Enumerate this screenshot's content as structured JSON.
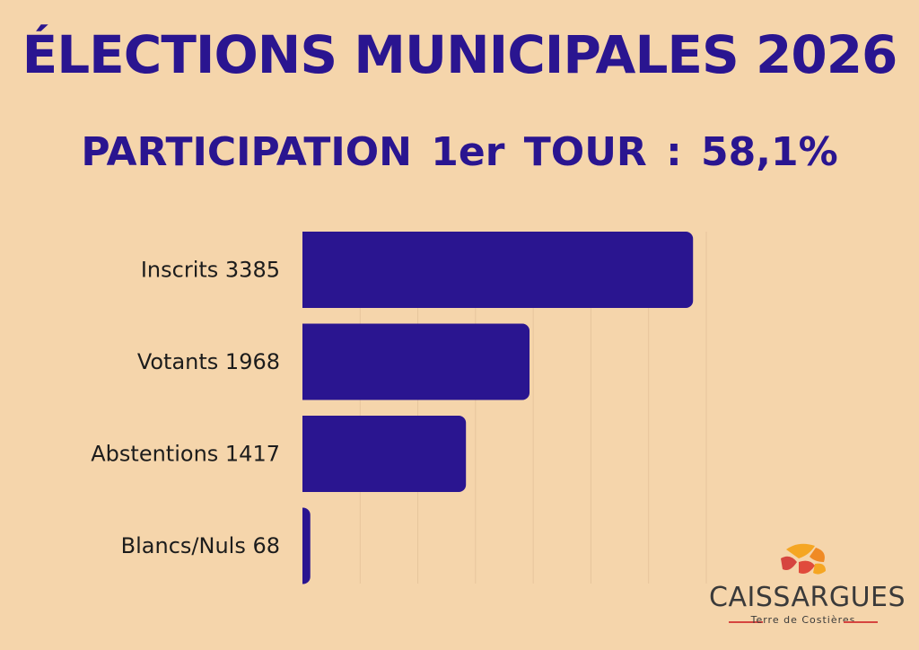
{
  "header": {
    "title": "ÉLECTIONS MUNICIPALES 2026",
    "subtitle": "PARTICIPATION 1er TOUR : 58,1%"
  },
  "colors": {
    "background": "#f5d5ab",
    "bar": "#2a1590",
    "title": "#2a1590"
  },
  "chart_data": {
    "type": "bar",
    "orientation": "horizontal",
    "categories": [
      "Inscrits 3385",
      "Votants 1968",
      "Abstentions 1417",
      "Blancs/Nuls 68"
    ],
    "values": [
      3385,
      1968,
      1417,
      68
    ],
    "xlim": [
      0,
      3500
    ],
    "grid": true
  },
  "logo": {
    "name": "CAISSARGUES",
    "tagline": "Terre de Costières",
    "icon": "caissargues-logo-icon"
  }
}
